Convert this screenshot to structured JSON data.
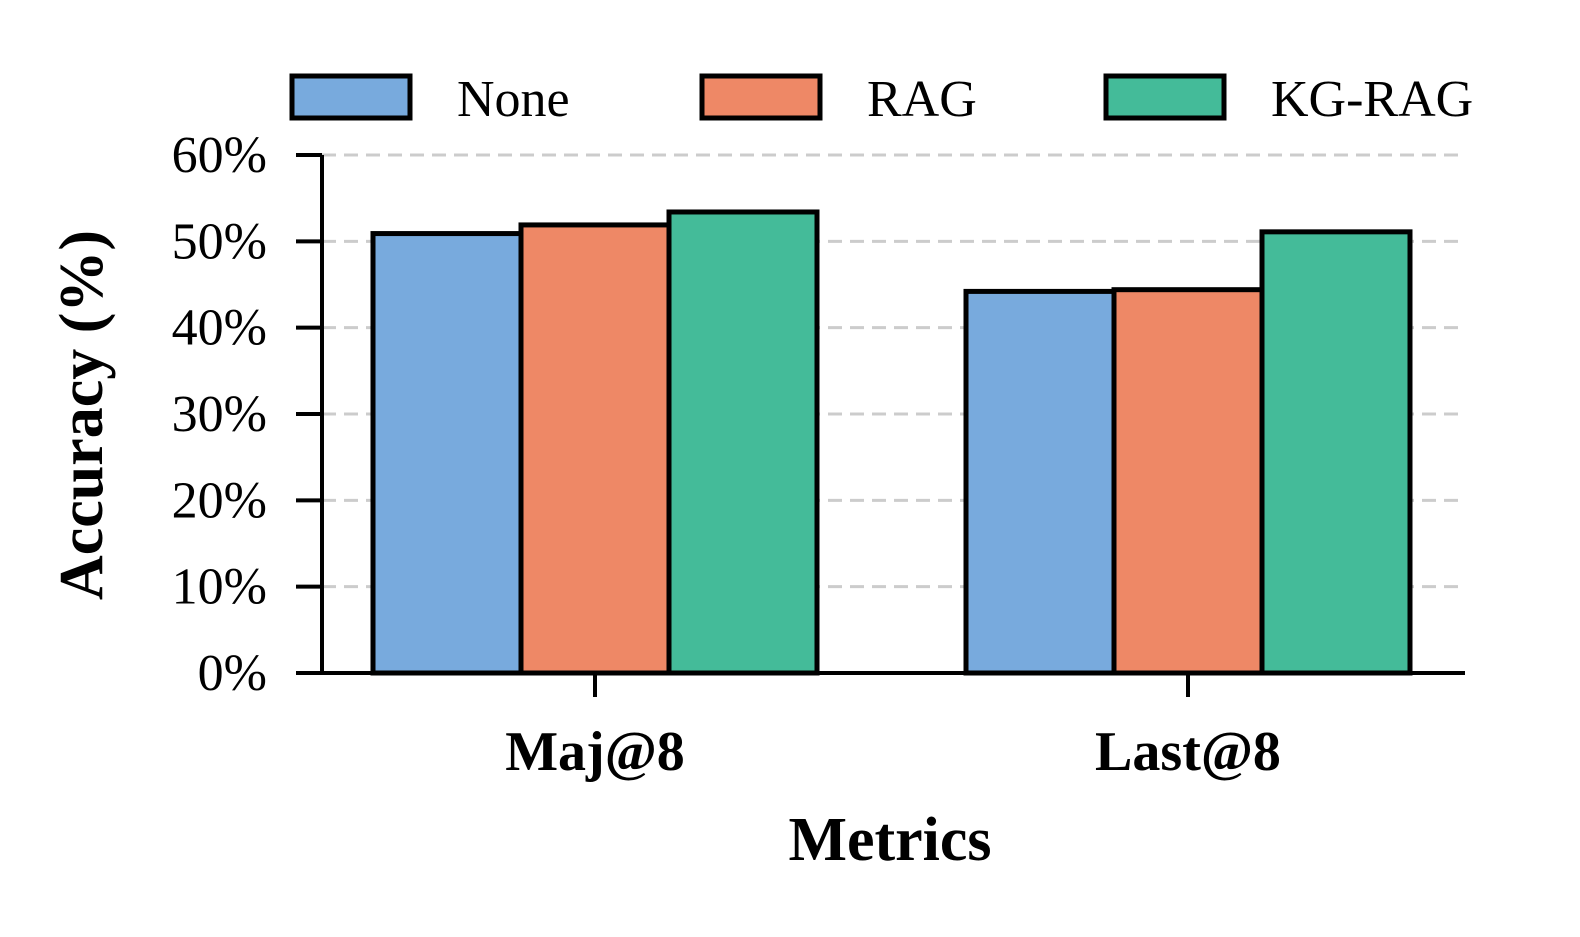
{
  "chart_data": {
    "type": "bar",
    "title": "",
    "xlabel": "Metrics",
    "ylabel": "Accuracy (%)",
    "categories": [
      "Maj@8",
      "Last@8"
    ],
    "series": [
      {
        "name": "None",
        "color": "#78aadd",
        "values": [
          50.9,
          44.2
        ]
      },
      {
        "name": "RAG",
        "color": "#ee8866",
        "values": [
          51.9,
          44.4
        ]
      },
      {
        "name": "KG-RAG",
        "color": "#44bb99",
        "values": [
          53.4,
          51.1
        ]
      }
    ],
    "ylim": [
      0,
      60
    ],
    "yticks": [
      0,
      10,
      20,
      30,
      40,
      50,
      60
    ],
    "ytick_labels": [
      "0%",
      "10%",
      "20%",
      "30%",
      "40%",
      "50%",
      "60%"
    ],
    "grid": "horizontal dashed",
    "legend_position": "top"
  }
}
